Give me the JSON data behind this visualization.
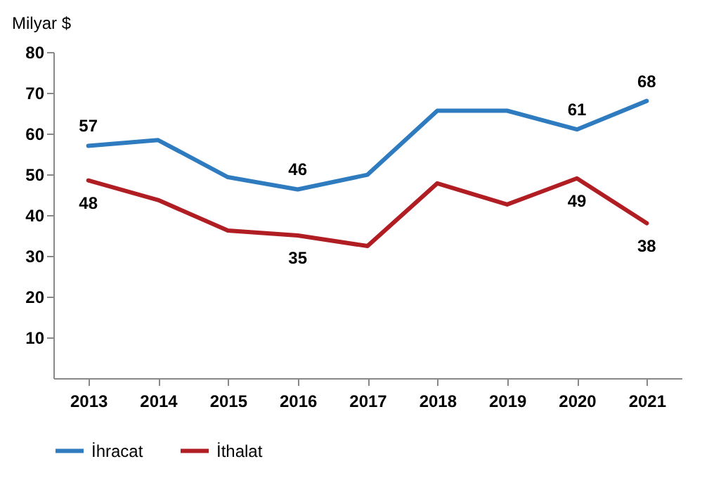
{
  "chart_data": {
    "type": "line",
    "ylabel": "Milyar $",
    "categories": [
      "2013",
      "2014",
      "2015",
      "2016",
      "2017",
      "2018",
      "2019",
      "2020",
      "2021"
    ],
    "series": [
      {
        "name": "İhracat",
        "color": "#2e7cbf",
        "values": [
          57,
          58.4,
          49.3,
          46.3,
          49.9,
          65.6,
          65.6,
          61,
          68
        ],
        "value_labels": [
          "57",
          null,
          null,
          "46",
          null,
          null,
          null,
          "61",
          "68"
        ]
      },
      {
        "name": "İthalat",
        "color": "#b01e23",
        "values": [
          48.5,
          43.7,
          36.2,
          35,
          32.4,
          47.8,
          42.6,
          49,
          38
        ],
        "value_labels": [
          "48",
          null,
          null,
          "35",
          null,
          null,
          null,
          "49",
          "38"
        ]
      }
    ],
    "ylim": [
      0,
      80
    ],
    "yticks": [
      10,
      20,
      30,
      40,
      50,
      60,
      70,
      80
    ],
    "grid": false,
    "legend": "bottom",
    "marker": "none",
    "line_style": "solid"
  }
}
